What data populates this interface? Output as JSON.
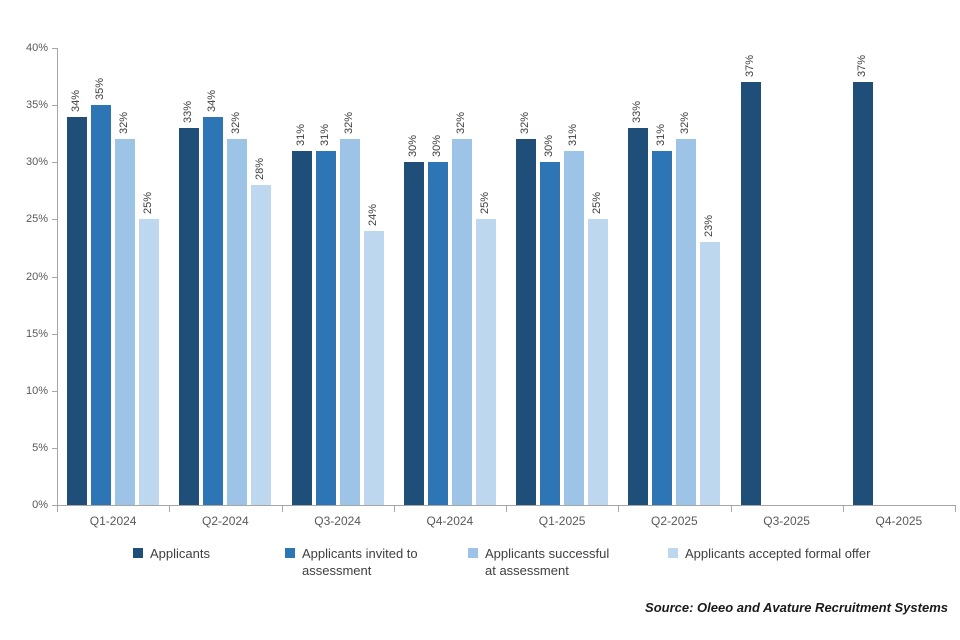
{
  "chart_data": {
    "type": "bar",
    "title": "",
    "unit": "%",
    "categories": [
      "Q1-2024",
      "Q2-2024",
      "Q3-2024",
      "Q4-2024",
      "Q1-2025",
      "Q2-2025",
      "Q3-2025",
      "Q4-2025"
    ],
    "series": [
      {
        "name": "Applicants",
        "color": "#1F4E79",
        "values": [
          34,
          33,
          31,
          30,
          32,
          33,
          37,
          37
        ]
      },
      {
        "name": "Applicants invited to assessment",
        "color": "#2E75B6",
        "values": [
          35,
          34,
          31,
          30,
          30,
          31,
          null,
          null
        ]
      },
      {
        "name": "Applicants successful at assessment",
        "color": "#9DC3E6",
        "values": [
          32,
          32,
          32,
          32,
          31,
          32,
          null,
          null
        ]
      },
      {
        "name": "Applicants accepted formal offer",
        "color": "#BDD7EE",
        "values": [
          25,
          28,
          24,
          25,
          25,
          23,
          null,
          null
        ]
      }
    ],
    "ylim": [
      0,
      40
    ],
    "ytick_values": [
      0,
      5,
      10,
      15,
      20,
      25,
      30,
      35,
      40
    ],
    "ytick_labels": [
      "0%",
      "5%",
      "10%",
      "15%",
      "20%",
      "25%",
      "30%",
      "35%",
      "40%"
    ],
    "grid": false,
    "legend_position": "bottom",
    "data_labels_rotated": true
  },
  "source_note": "Source: Oleeo and Avature Recruitment Systems"
}
